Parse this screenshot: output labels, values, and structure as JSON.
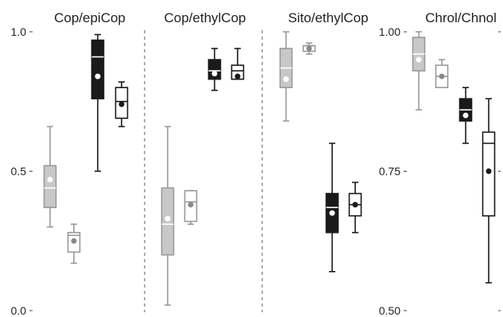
{
  "chart_data": [
    {
      "type": "box",
      "title": "Cop/epiCop",
      "ylim": [
        0.0,
        1.0
      ],
      "yticks": [
        "0.0",
        "0.5",
        "1.0"
      ],
      "boxes": [
        {
          "style": "gray-filled",
          "whisker_low": 0.3,
          "q1": 0.37,
          "median": 0.44,
          "q3": 0.52,
          "whisker_high": 0.66,
          "mean": 0.47
        },
        {
          "style": "gray-open",
          "whisker_low": 0.17,
          "q1": 0.21,
          "median": 0.27,
          "q3": 0.28,
          "whisker_high": 0.31,
          "mean": 0.25
        },
        {
          "style": "black-filled",
          "whisker_low": 0.5,
          "q1": 0.76,
          "median": 0.91,
          "q3": 0.97,
          "whisker_high": 0.99,
          "mean": 0.84
        },
        {
          "style": "black-open",
          "whisker_low": 0.66,
          "q1": 0.69,
          "median": 0.75,
          "q3": 0.8,
          "whisker_high": 0.82,
          "mean": 0.74
        }
      ]
    },
    {
      "type": "box",
      "title": "Cop/ethylCop",
      "ylim": [
        0.0,
        1.0
      ],
      "yticks": [],
      "boxes": [
        {
          "style": "gray-filled",
          "whisker_low": 0.02,
          "q1": 0.2,
          "median": 0.31,
          "q3": 0.44,
          "whisker_high": 0.66,
          "mean": 0.33
        },
        {
          "style": "gray-open",
          "whisker_low": 0.31,
          "q1": 0.32,
          "median": 0.39,
          "q3": 0.43,
          "whisker_high": 0.43,
          "mean": 0.38
        },
        {
          "style": "black-filled",
          "whisker_low": 0.79,
          "q1": 0.83,
          "median": 0.86,
          "q3": 0.9,
          "whisker_high": 0.94,
          "mean": 0.85
        },
        {
          "style": "black-open",
          "whisker_low": 0.83,
          "q1": 0.83,
          "median": 0.86,
          "q3": 0.88,
          "whisker_high": 0.94,
          "mean": 0.84
        }
      ]
    },
    {
      "type": "box",
      "title": "Sito/ethylCop",
      "ylim": [
        0.0,
        1.0
      ],
      "yticks": [],
      "boxes": [
        {
          "style": "gray-filled",
          "whisker_low": 0.68,
          "q1": 0.8,
          "median": 0.87,
          "q3": 0.94,
          "whisker_high": 1.0,
          "mean": 0.83
        },
        {
          "style": "gray-open",
          "whisker_low": 0.92,
          "q1": 0.93,
          "median": 0.95,
          "q3": 0.95,
          "whisker_high": 0.96,
          "mean": 0.94
        },
        {
          "style": "black-filled",
          "whisker_low": 0.14,
          "q1": 0.28,
          "median": 0.37,
          "q3": 0.42,
          "whisker_high": 0.6,
          "mean": 0.35
        },
        {
          "style": "black-open",
          "whisker_low": 0.28,
          "q1": 0.34,
          "median": 0.38,
          "q3": 0.42,
          "whisker_high": 0.46,
          "mean": 0.38
        }
      ]
    },
    {
      "type": "box",
      "title": "Chrol/Chnol",
      "ylim": [
        0.5,
        1.0
      ],
      "yticks": [
        "0.50",
        "0.75",
        "1.00"
      ],
      "boxes": [
        {
          "style": "gray-filled",
          "whisker_low": 0.86,
          "q1": 0.93,
          "median": 0.96,
          "q3": 0.99,
          "whisker_high": 1.0,
          "mean": 0.95
        },
        {
          "style": "gray-open",
          "whisker_low": 0.9,
          "q1": 0.9,
          "median": 0.92,
          "q3": 0.94,
          "whisker_high": 0.95,
          "mean": 0.92
        },
        {
          "style": "black-filled",
          "whisker_low": 0.8,
          "q1": 0.84,
          "median": 0.86,
          "q3": 0.88,
          "whisker_high": 0.9,
          "mean": 0.85
        },
        {
          "style": "black-open",
          "whisker_low": 0.55,
          "q1": 0.67,
          "median": 0.8,
          "q3": 0.82,
          "whisker_high": 0.88,
          "mean": 0.75
        }
      ]
    }
  ]
}
